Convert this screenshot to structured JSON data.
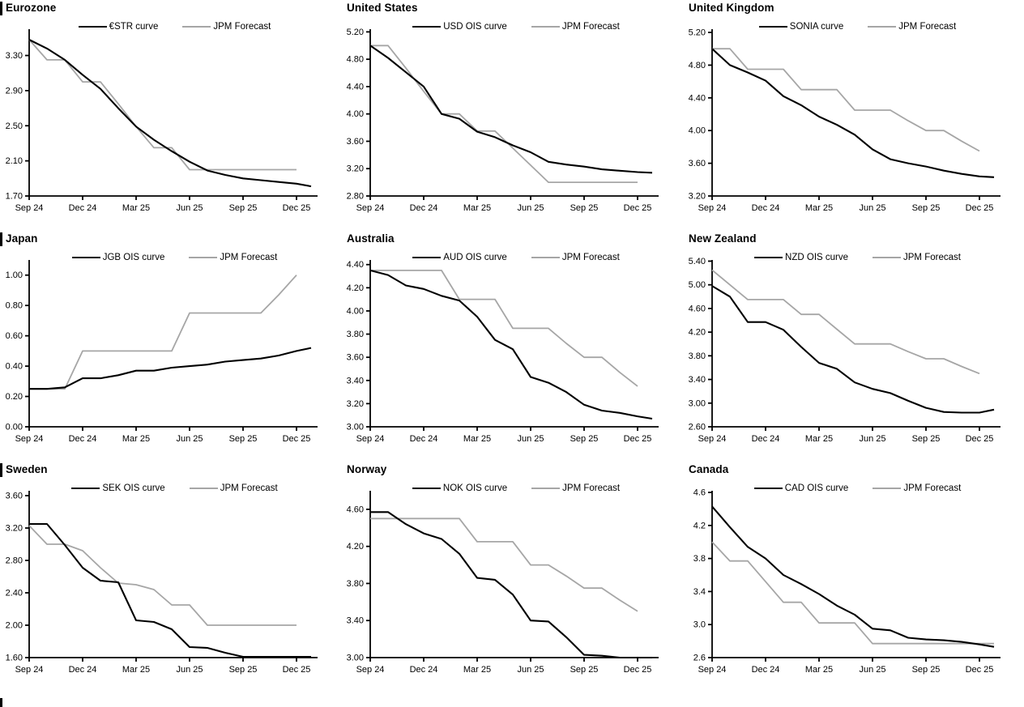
{
  "notes": "3x3 grid of policy-rate OIS curves vs JPM forecasts. Series value arrays hold monthly points Sep 24 - Dec 25; where an array has a 17th value it is the short curve tail drawn just past the Dec 25 tick.",
  "colors": {
    "curve": "#000000",
    "forecast": "#a6a6a6",
    "axis": "#000000",
    "background": "#ffffff"
  },
  "x_axis": {
    "months": [
      "Sep 24",
      "Oct 24",
      "Nov 24",
      "Dec 24",
      "Jan 25",
      "Feb 25",
      "Mar 25",
      "Apr 25",
      "May 25",
      "Jun 25",
      "Jul 25",
      "Aug 25",
      "Sep 25",
      "Oct 25",
      "Nov 25",
      "Dec 25"
    ],
    "tick_labels": [
      "Sep 24",
      "Dec 24",
      "Mar 25",
      "Jun 25",
      "Sep 25",
      "Dec 25"
    ]
  },
  "chart_data": [
    {
      "type": "line",
      "title": "Eurozone",
      "ylim": [
        1.7,
        3.6
      ],
      "y_tick_values": [
        1.7,
        2.1,
        2.5,
        2.9,
        3.3
      ],
      "y_tick_labels": [
        "1.70",
        "2.10",
        "2.50",
        "2.90",
        "3.30"
      ],
      "series": [
        {
          "name": "€STR curve",
          "color": "#000000",
          "values": [
            3.48,
            3.38,
            3.25,
            3.08,
            2.92,
            2.7,
            2.49,
            2.34,
            2.21,
            2.09,
            1.99,
            1.94,
            1.9,
            1.88,
            1.86,
            1.84,
            1.81
          ]
        },
        {
          "name": "JPM Forecast",
          "color": "#a6a6a6",
          "values": [
            3.48,
            3.25,
            3.25,
            3.0,
            3.0,
            2.75,
            2.49,
            2.25,
            2.25,
            2.0,
            2.0,
            2.0,
            2.0,
            2.0,
            2.0,
            2.0
          ]
        }
      ]
    },
    {
      "type": "line",
      "title": "United States",
      "ylim": [
        2.8,
        5.24
      ],
      "y_tick_values": [
        2.8,
        3.2,
        3.6,
        4.0,
        4.4,
        4.8,
        5.2
      ],
      "y_tick_labels": [
        "2.80",
        "3.20",
        "3.60",
        "4.00",
        "4.40",
        "4.80",
        "5.20"
      ],
      "series": [
        {
          "name": "USD OIS curve",
          "color": "#000000",
          "values": [
            5.0,
            4.82,
            4.61,
            4.4,
            4.0,
            3.93,
            3.74,
            3.66,
            3.54,
            3.44,
            3.3,
            3.26,
            3.23,
            3.19,
            3.17,
            3.15,
            3.14
          ]
        },
        {
          "name": "JPM Forecast",
          "color": "#a6a6a6",
          "values": [
            5.0,
            5.0,
            4.67,
            4.33,
            4.0,
            4.0,
            3.75,
            3.75,
            3.5,
            3.25,
            3.0,
            3.0,
            3.0,
            3.0,
            3.0,
            3.0
          ]
        }
      ]
    },
    {
      "type": "line",
      "title": "United Kingdom",
      "ylim": [
        3.2,
        5.24
      ],
      "y_tick_values": [
        3.2,
        3.6,
        4.0,
        4.4,
        4.8,
        5.2
      ],
      "y_tick_labels": [
        "3.20",
        "3.60",
        "4.00",
        "4.40",
        "4.80",
        "5.20"
      ],
      "series": [
        {
          "name": "SONIA curve",
          "color": "#000000",
          "values": [
            5.0,
            4.8,
            4.71,
            4.61,
            4.42,
            4.31,
            4.17,
            4.07,
            3.95,
            3.77,
            3.65,
            3.6,
            3.56,
            3.51,
            3.47,
            3.44,
            3.43
          ]
        },
        {
          "name": "JPM Forecast",
          "color": "#a6a6a6",
          "values": [
            5.0,
            5.0,
            4.75,
            4.75,
            4.75,
            4.5,
            4.5,
            4.5,
            4.25,
            4.25,
            4.25,
            4.12,
            4.0,
            4.0,
            3.87,
            3.75
          ]
        }
      ]
    },
    {
      "type": "line",
      "title": "Japan",
      "ylim": [
        0.0,
        1.1
      ],
      "y_tick_values": [
        0.0,
        0.2,
        0.4,
        0.6,
        0.8,
        1.0
      ],
      "y_tick_labels": [
        "0.00",
        "0.20",
        "0.40",
        "0.60",
        "0.80",
        "1.00"
      ],
      "series": [
        {
          "name": "JGB OIS curve",
          "color": "#000000",
          "values": [
            0.25,
            0.25,
            0.26,
            0.32,
            0.32,
            0.34,
            0.37,
            0.37,
            0.39,
            0.4,
            0.41,
            0.43,
            0.44,
            0.45,
            0.47,
            0.5,
            0.52
          ]
        },
        {
          "name": "JPM Forecast",
          "color": "#a6a6a6",
          "values": [
            0.25,
            0.25,
            0.25,
            0.5,
            0.5,
            0.5,
            0.5,
            0.5,
            0.5,
            0.75,
            0.75,
            0.75,
            0.75,
            0.75,
            0.87,
            1.0
          ]
        }
      ]
    },
    {
      "type": "line",
      "title": "Australia",
      "ylim": [
        3.0,
        4.44
      ],
      "y_tick_values": [
        3.0,
        3.2,
        3.4,
        3.6,
        3.8,
        4.0,
        4.2,
        4.4
      ],
      "y_tick_labels": [
        "3.00",
        "3.20",
        "3.40",
        "3.60",
        "3.80",
        "4.00",
        "4.20",
        "4.40"
      ],
      "series": [
        {
          "name": "AUD OIS curve",
          "color": "#000000",
          "values": [
            4.35,
            4.31,
            4.22,
            4.19,
            4.13,
            4.09,
            3.95,
            3.75,
            3.67,
            3.43,
            3.38,
            3.3,
            3.19,
            3.14,
            3.12,
            3.09,
            3.07
          ]
        },
        {
          "name": "JPM Forecast",
          "color": "#a6a6a6",
          "values": [
            4.35,
            4.35,
            4.35,
            4.35,
            4.35,
            4.1,
            4.1,
            4.1,
            3.85,
            3.85,
            3.85,
            3.72,
            3.6,
            3.6,
            3.47,
            3.35
          ]
        }
      ]
    },
    {
      "type": "line",
      "title": "New Zealand",
      "ylim": [
        2.6,
        5.42
      ],
      "y_tick_values": [
        2.6,
        3.0,
        3.4,
        3.8,
        4.2,
        4.6,
        5.0,
        5.4
      ],
      "y_tick_labels": [
        "2.60",
        "3.00",
        "3.40",
        "3.80",
        "4.20",
        "4.60",
        "5.00",
        "5.40"
      ],
      "series": [
        {
          "name": "NZD OIS curve",
          "color": "#000000",
          "values": [
            4.98,
            4.8,
            4.37,
            4.37,
            4.24,
            3.95,
            3.68,
            3.58,
            3.35,
            3.24,
            3.17,
            3.04,
            2.92,
            2.85,
            2.84,
            2.84,
            2.89
          ]
        },
        {
          "name": "JPM Forecast",
          "color": "#a6a6a6",
          "values": [
            5.25,
            5.0,
            4.75,
            4.75,
            4.75,
            4.5,
            4.5,
            4.25,
            4.0,
            4.0,
            4.0,
            3.87,
            3.75,
            3.75,
            3.62,
            3.5
          ]
        }
      ]
    },
    {
      "type": "line",
      "title": "Sweden",
      "ylim": [
        1.6,
        3.66
      ],
      "y_tick_values": [
        1.6,
        2.0,
        2.4,
        2.8,
        3.2,
        3.6
      ],
      "y_tick_labels": [
        "1.60",
        "2.00",
        "2.40",
        "2.80",
        "3.20",
        "3.60"
      ],
      "series": [
        {
          "name": "SEK OIS curve",
          "color": "#000000",
          "values": [
            3.25,
            3.25,
            2.99,
            2.71,
            2.55,
            2.53,
            2.06,
            2.04,
            1.95,
            1.73,
            1.72,
            1.66,
            1.61,
            1.61,
            1.61,
            1.61,
            1.61
          ]
        },
        {
          "name": "JPM Forecast",
          "color": "#a6a6a6",
          "values": [
            3.23,
            3.0,
            3.0,
            2.92,
            2.71,
            2.52,
            2.5,
            2.44,
            2.25,
            2.25,
            2.0,
            2.0,
            2.0,
            2.0,
            2.0,
            2.0
          ]
        }
      ]
    },
    {
      "type": "line",
      "title": "Norway",
      "ylim": [
        3.0,
        4.8
      ],
      "y_tick_values": [
        3.0,
        3.4,
        3.8,
        4.2,
        4.6
      ],
      "y_tick_labels": [
        "3.00",
        "3.40",
        "3.80",
        "4.20",
        "4.60"
      ],
      "series": [
        {
          "name": "NOK OIS curve",
          "color": "#000000",
          "values": [
            4.57,
            4.57,
            4.44,
            4.34,
            4.28,
            4.12,
            3.86,
            3.84,
            3.68,
            3.4,
            3.39,
            3.22,
            3.03,
            3.02,
            3.0,
            3.0,
            3.0
          ]
        },
        {
          "name": "JPM Forecast",
          "color": "#a6a6a6",
          "values": [
            4.5,
            4.5,
            4.5,
            4.5,
            4.5,
            4.5,
            4.25,
            4.25,
            4.25,
            4.0,
            4.0,
            3.88,
            3.75,
            3.75,
            3.62,
            3.5
          ]
        }
      ]
    },
    {
      "type": "line",
      "title": "Canada",
      "ylim": [
        2.6,
        4.62
      ],
      "y_tick_values": [
        2.6,
        3.0,
        3.4,
        3.8,
        4.2,
        4.6
      ],
      "y_tick_labels": [
        "2.6",
        "3.0",
        "3.4",
        "3.8",
        "4.2",
        "4.6"
      ],
      "series": [
        {
          "name": "CAD OIS curve",
          "color": "#000000",
          "values": [
            4.43,
            4.18,
            3.94,
            3.8,
            3.6,
            3.49,
            3.37,
            3.23,
            3.12,
            2.95,
            2.93,
            2.84,
            2.82,
            2.81,
            2.79,
            2.76,
            2.73
          ]
        },
        {
          "name": "JPM Forecast",
          "color": "#a6a6a6",
          "values": [
            4.0,
            3.77,
            3.77,
            3.52,
            3.27,
            3.27,
            3.02,
            3.02,
            3.02,
            2.77,
            2.77,
            2.77,
            2.77,
            2.77,
            2.77,
            2.77,
            2.77
          ]
        }
      ]
    }
  ]
}
